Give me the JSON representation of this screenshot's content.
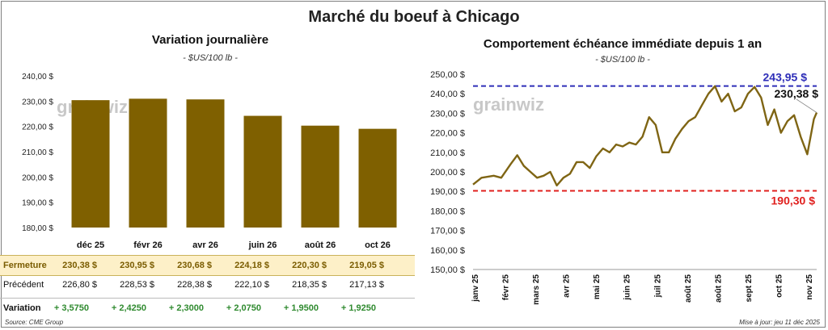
{
  "title": "Marché du boeuf à Chicago",
  "source": "Source: CME Group",
  "update": "Mise à jour: jeu 11 déc 2025",
  "watermark": "grainwiz",
  "colors": {
    "bar": "#7f6000",
    "line": "#7f6514",
    "high": "#2e2eb8",
    "low": "#e0201e",
    "close_bg": "#fdf0c8",
    "positive": "#2f8a2f"
  },
  "table": {
    "close_label": "Fermeture",
    "prev_label": "Précédent",
    "var_label": "Variation",
    "close": [
      "230,38 $",
      "230,95 $",
      "230,68 $",
      "224,18 $",
      "220,30 $",
      "219,05 $"
    ],
    "prev": [
      "226,80 $",
      "228,53 $",
      "228,38 $",
      "222,10 $",
      "218,35 $",
      "217,13 $"
    ],
    "var": [
      "+ 3,5750",
      "+ 2,4250",
      "+ 2,3000",
      "+ 2,0750",
      "+ 1,9500",
      "+ 1,9250"
    ]
  },
  "chart_data": [
    {
      "type": "bar",
      "title": "Variation journalière",
      "subtitle": "- $US/100 lb -",
      "categories": [
        "déc 25",
        "févr 26",
        "avr 26",
        "juin 26",
        "août 26",
        "oct 26"
      ],
      "values": [
        230.38,
        230.95,
        230.68,
        224.18,
        220.3,
        219.05
      ],
      "ylim": [
        180,
        240
      ],
      "yticks": [
        "180,00 $",
        "190,00 $",
        "200,00 $",
        "210,00 $",
        "220,00 $",
        "230,00 $",
        "240,00 $"
      ],
      "grid": false
    },
    {
      "type": "line",
      "title": "Comportement échéance immédiate depuis 1 an",
      "subtitle": "- $US/100 lb -",
      "xticks": [
        "janv 25",
        "févr 25",
        "mars 25",
        "avr 25",
        "mai 25",
        "juin 25",
        "juil 25",
        "août 25",
        "août 25",
        "sept 25",
        "oct 25",
        "nov 25"
      ],
      "yticks": [
        "150,00 $",
        "160,00 $",
        "170,00 $",
        "180,00 $",
        "190,00 $",
        "200,00 $",
        "210,00 $",
        "220,00 $",
        "230,00 $",
        "240,00 $",
        "250,00 $"
      ],
      "ylim": [
        150,
        250
      ],
      "x": [
        "2024-12-11",
        "2024-12-20",
        "2025-01-02",
        "2025-01-10",
        "2025-01-20",
        "2025-01-27",
        "2025-02-03",
        "2025-02-10",
        "2025-02-17",
        "2025-02-24",
        "2025-03-03",
        "2025-03-10",
        "2025-03-17",
        "2025-03-24",
        "2025-03-31",
        "2025-04-07",
        "2025-04-14",
        "2025-04-21",
        "2025-04-28",
        "2025-05-05",
        "2025-05-12",
        "2025-05-19",
        "2025-05-26",
        "2025-06-02",
        "2025-06-09",
        "2025-06-16",
        "2025-06-23",
        "2025-06-30",
        "2025-07-07",
        "2025-07-14",
        "2025-07-21",
        "2025-07-28",
        "2025-08-04",
        "2025-08-11",
        "2025-08-18",
        "2025-08-25",
        "2025-09-01",
        "2025-09-08",
        "2025-09-15",
        "2025-09-22",
        "2025-09-29",
        "2025-10-06",
        "2025-10-13",
        "2025-10-20",
        "2025-10-27",
        "2025-11-03",
        "2025-11-10",
        "2025-11-17",
        "2025-11-24",
        "2025-12-01",
        "2025-12-08",
        "2025-12-11"
      ],
      "y": [
        193.5,
        197,
        198,
        197,
        204,
        208.5,
        203,
        200,
        197,
        198,
        200,
        193,
        197,
        199,
        205,
        205,
        202,
        208,
        212,
        210,
        214,
        213,
        215,
        214,
        218,
        228,
        224,
        210,
        210,
        217,
        222,
        226,
        228,
        234,
        240,
        243.9,
        236,
        240,
        231,
        233,
        240,
        243.5,
        238,
        224,
        232,
        220,
        226,
        229,
        218,
        209,
        227,
        230.38
      ],
      "high": {
        "value": 243.95,
        "label": "243,95 $"
      },
      "low": {
        "value": 190.3,
        "label": "190,30 $"
      },
      "last_label": "230,38 $",
      "grid": false
    }
  ]
}
